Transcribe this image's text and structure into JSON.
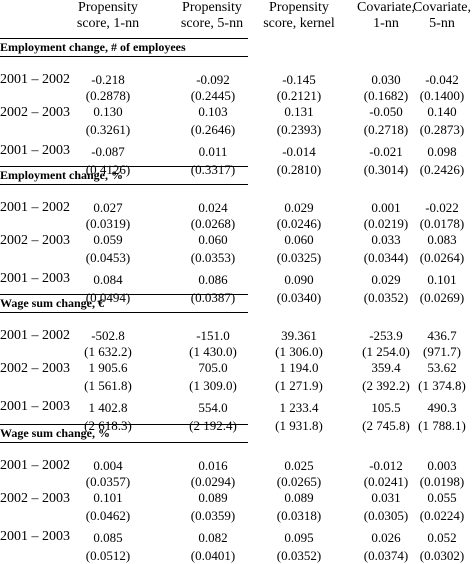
{
  "headers": [
    {
      "line1": "Propensity",
      "line2": "score, 1-nn"
    },
    {
      "line1": "Propensity",
      "line2": "score, 5-nn"
    },
    {
      "line1": "Propensity",
      "line2": "score, kernel"
    },
    {
      "line1": "Covariate,",
      "line2": "1-nn"
    },
    {
      "line1": "Covariate,",
      "line2": "5-nn"
    }
  ],
  "sections": [
    {
      "title": "Employment change, # of employees",
      "rows": [
        {
          "year": "2001 – 2002",
          "est": [
            "-0.218",
            "-0.092",
            "-0.145",
            "0.030",
            "-0.042"
          ],
          "se": [
            "(0.2878)",
            "(0.2445)",
            "(0.2121)",
            "(0.1682)",
            "(0.1400)"
          ]
        },
        {
          "year": "2002 – 2003",
          "est": [
            "0.130",
            "0.103",
            "0.131",
            "-0.050",
            "0.140"
          ],
          "se": [
            "(0.3261)",
            "(0.2646)",
            "(0.2393)",
            "(0.2718)",
            "(0.2873)"
          ]
        },
        {
          "year": "2001 – 2003",
          "est": [
            "-0.087",
            "0.011",
            "-0.014",
            "-0.021",
            "0.098"
          ],
          "se": [
            "(0.4126)",
            "(0.3317)",
            "(0.2810)",
            "(0.3014)",
            "(0.2426)"
          ]
        }
      ]
    },
    {
      "title": "Employment change, %",
      "rows": [
        {
          "year": "2001 – 2002",
          "est": [
            "0.027",
            "0.024",
            "0.029",
            "0.001",
            "-0.022"
          ],
          "se": [
            "(0.0319)",
            "(0.0268)",
            "(0.0246)",
            "(0.0219)",
            "(0.0178)"
          ]
        },
        {
          "year": "2002 – 2003",
          "est": [
            "0.059",
            "0.060",
            "0.060",
            "0.033",
            "0.083"
          ],
          "se": [
            "(0.0453)",
            "(0.0353)",
            "(0.0325)",
            "(0.0344)",
            "(0.0264)"
          ]
        },
        {
          "year": "2001 – 2003",
          "est": [
            "0.084",
            "0.086",
            "0.090",
            "0.029",
            "0.101"
          ],
          "se": [
            "(0.0494)",
            "(0.0387)",
            "(0.0340)",
            "(0.0352)",
            "(0.0269)"
          ]
        }
      ]
    },
    {
      "title": "Wage sum change, €",
      "rows": [
        {
          "year": "2001 – 2002",
          "est": [
            "-502.8",
            "-151.0",
            "39.361",
            "-253.9",
            "436.7"
          ],
          "se": [
            "(1 632.2)",
            "(1 430.0)",
            "(1 306.0)",
            "(1 254.0)",
            "(971.7)"
          ]
        },
        {
          "year": "2002 – 2003",
          "est": [
            "1 905.6",
            "705.0",
            "1 194.0",
            "359.4",
            "53.62"
          ],
          "se": [
            "(1 561.8)",
            "(1 309.0)",
            "(1 271.9)",
            "(2 392.2)",
            "(1 374.8)"
          ]
        },
        {
          "year": "2001 – 2003",
          "est": [
            "1 402.8",
            "554.0",
            "1 233.4",
            "105.5",
            "490.3"
          ],
          "se": [
            "(2 618.3)",
            "(2 192.4)",
            "(1 931.8)",
            "(2 745.8)",
            "(1 788.1)"
          ]
        }
      ]
    },
    {
      "title": "Wage sum change, %",
      "rows": [
        {
          "year": "2001 – 2002",
          "est": [
            "0.004",
            "0.016",
            "0.025",
            "-0.012",
            "0.003"
          ],
          "se": [
            "(0.0357)",
            "(0.0294)",
            "(0.0265)",
            "(0.0241)",
            "(0.0198)"
          ]
        },
        {
          "year": "2002 – 2003",
          "est": [
            "0.101",
            "0.089",
            "0.089",
            "0.031",
            "0.055"
          ],
          "se": [
            "(0.0462)",
            "(0.0359)",
            "(0.0318)",
            "(0.0305)",
            "(0.0224)"
          ]
        },
        {
          "year": "2001 – 2003",
          "est": [
            "0.085",
            "0.082",
            "0.095",
            "0.026",
            "0.052"
          ],
          "se": [
            "(0.0512)",
            "(0.0401)",
            "(0.0352)",
            "(0.0374)",
            "(0.0302)"
          ]
        }
      ]
    }
  ]
}
